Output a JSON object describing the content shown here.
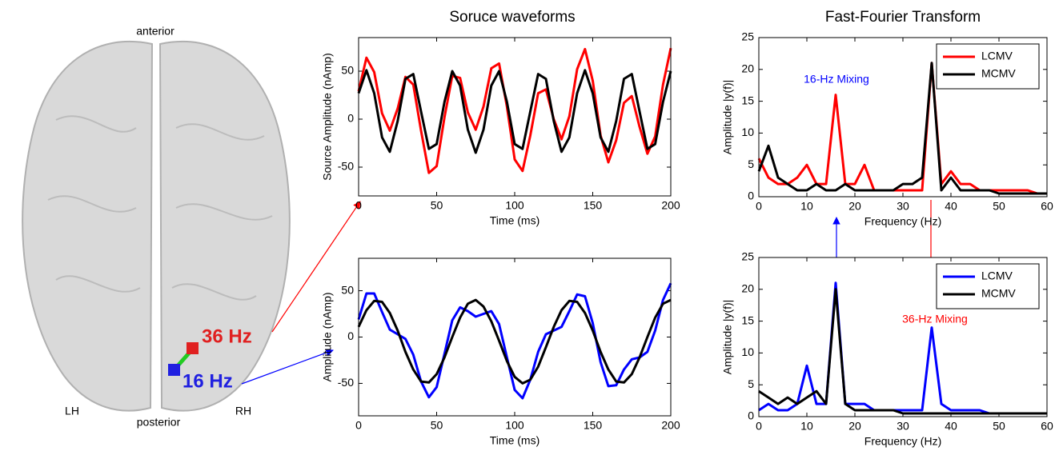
{
  "figure": {
    "titles": [
      "Soruce waveforms",
      "Fast-Fourier Transform"
    ],
    "brain": {
      "anterior": "anterior",
      "posterior": "posterior",
      "left": "LH",
      "right": "RH",
      "source_a": "36 Hz",
      "source_b": "16 Hz"
    }
  },
  "chart_data": [
    {
      "type": "line",
      "xlabel": "Time (ms)",
      "ylabel": "Source Amplitude (nAmp)",
      "x": [
        0,
        5,
        10,
        15,
        20,
        25,
        30,
        35,
        40,
        45,
        50,
        55,
        60,
        65,
        70,
        75,
        80,
        85,
        90,
        95,
        100,
        105,
        110,
        115,
        120,
        125,
        130,
        135,
        140,
        145,
        150,
        155,
        160,
        165,
        170,
        175,
        180,
        185,
        190,
        195,
        200
      ],
      "series": [
        {
          "color": "#ff0000",
          "values": [
            29,
            64,
            49,
            6,
            -12,
            11,
            44,
            36,
            -12,
            -56,
            -49,
            2,
            45,
            43,
            7,
            -11,
            13,
            53,
            58,
            13,
            -42,
            -54,
            -17,
            27,
            31,
            0,
            -21,
            3,
            52,
            73,
            40,
            -17,
            -45,
            -22,
            17,
            24,
            -8,
            -36,
            -18,
            36,
            74
          ]
        },
        {
          "color": "#000000",
          "values": [
            27,
            51,
            27,
            -19,
            -34,
            -2,
            42,
            47,
            8,
            -31,
            -26,
            18,
            50,
            35,
            -11,
            -35,
            -11,
            35,
            50,
            18,
            -26,
            -31,
            8,
            47,
            42,
            -2,
            -34,
            -19,
            27,
            51,
            27,
            -19,
            -34,
            -2,
            42,
            47,
            8,
            -31,
            -26,
            18,
            50
          ]
        }
      ],
      "xlim": [
        0,
        200
      ],
      "ylim": [
        -80,
        85
      ],
      "xticks": [
        0,
        50,
        100,
        150,
        200
      ],
      "yticks": [
        -50,
        0,
        50
      ]
    },
    {
      "type": "line",
      "xlabel": "Time (ms)",
      "ylabel": "Amplitude (nAmp)",
      "x": [
        0,
        5,
        10,
        15,
        20,
        25,
        30,
        35,
        40,
        45,
        50,
        55,
        60,
        65,
        70,
        75,
        80,
        85,
        90,
        95,
        100,
        105,
        110,
        115,
        120,
        125,
        130,
        135,
        140,
        145,
        150,
        155,
        160,
        165,
        170,
        175,
        180,
        185,
        190,
        195,
        200
      ],
      "series": [
        {
          "color": "#0000ff",
          "values": [
            19,
            47,
            47,
            27,
            8,
            3,
            -2,
            -19,
            -48,
            -65,
            -54,
            -18,
            18,
            32,
            28,
            22,
            25,
            28,
            14,
            -22,
            -57,
            -66,
            -46,
            -16,
            3,
            7,
            11,
            28,
            46,
            44,
            15,
            -27,
            -53,
            -52,
            -35,
            -24,
            -22,
            -16,
            7,
            40,
            58
          ]
        },
        {
          "color": "#000000",
          "values": [
            11,
            29,
            39,
            38,
            26,
            7,
            -16,
            -35,
            -48,
            -49,
            -40,
            -22,
            0,
            21,
            36,
            40,
            33,
            17,
            -4,
            -26,
            -43,
            -50,
            -46,
            -32,
            -11,
            11,
            29,
            39,
            38,
            26,
            7,
            -16,
            -35,
            -48,
            -49,
            -40,
            -22,
            0,
            21,
            36,
            40
          ]
        }
      ],
      "xlim": [
        0,
        200
      ],
      "ylim": [
        -85,
        85
      ],
      "xticks": [
        0,
        50,
        100,
        150,
        200
      ],
      "yticks": [
        -50,
        0,
        50
      ]
    },
    {
      "type": "line",
      "xlabel": "Frequency (Hz)",
      "ylabel": "Amplitude |y(f)|",
      "x": [
        0,
        2,
        4,
        6,
        8,
        10,
        12,
        14,
        16,
        18,
        20,
        22,
        24,
        26,
        28,
        30,
        32,
        34,
        36,
        38,
        40,
        42,
        44,
        46,
        48,
        50,
        52,
        54,
        56,
        58,
        60
      ],
      "series": [
        {
          "name": "LCMV",
          "color": "#ff0000",
          "values": [
            6,
            3,
            2,
            2,
            3,
            5,
            2,
            2,
            16,
            2,
            2,
            5,
            1,
            1,
            1,
            1,
            1,
            1,
            21,
            2,
            4,
            2,
            2,
            1,
            1,
            1,
            1,
            1,
            1,
            0.5,
            0.5
          ]
        },
        {
          "name": "MCMV",
          "color": "#000000",
          "values": [
            4,
            8,
            3,
            2,
            1,
            1,
            2,
            1,
            1,
            2,
            1,
            1,
            1,
            1,
            1,
            2,
            2,
            3,
            21,
            1,
            3,
            1,
            1,
            1,
            1,
            0.5,
            0.5,
            0.5,
            0.5,
            0.5,
            0.5
          ]
        }
      ],
      "xlim": [
        0,
        60
      ],
      "ylim": [
        0,
        25
      ],
      "xticks": [
        0,
        10,
        20,
        30,
        40,
        50,
        60
      ],
      "yticks": [
        0,
        5,
        10,
        15,
        20,
        25
      ],
      "legend": "upper right",
      "annotation": {
        "text": "16-Hz Mixing",
        "color": "#0000ff"
      }
    },
    {
      "type": "line",
      "xlabel": "Frequency (Hz)",
      "ylabel": "Amplitude |y(f)|",
      "x": [
        0,
        2,
        4,
        6,
        8,
        10,
        12,
        14,
        16,
        18,
        20,
        22,
        24,
        26,
        28,
        30,
        32,
        34,
        36,
        38,
        40,
        42,
        44,
        46,
        48,
        50,
        52,
        54,
        56,
        58,
        60
      ],
      "series": [
        {
          "name": "LCMV",
          "color": "#0000ff",
          "values": [
            1,
            2,
            1,
            1,
            2,
            8,
            2,
            2,
            21,
            2,
            2,
            2,
            1,
            1,
            1,
            1,
            1,
            1,
            14,
            2,
            1,
            1,
            1,
            1,
            0.5,
            0.5,
            0.5,
            0.5,
            0.5,
            0.5,
            0.5
          ]
        },
        {
          "name": "MCMV",
          "color": "#000000",
          "values": [
            4,
            3,
            2,
            3,
            2,
            3,
            4,
            2,
            20,
            2,
            1,
            1,
            1,
            1,
            1,
            0.5,
            0.5,
            0.5,
            0.5,
            0.5,
            0.5,
            0.5,
            0.5,
            0.5,
            0.5,
            0.5,
            0.5,
            0.5,
            0.5,
            0.5,
            0.5
          ]
        }
      ],
      "xlim": [
        0,
        60
      ],
      "ylim": [
        0,
        25
      ],
      "xticks": [
        0,
        10,
        20,
        30,
        40,
        50,
        60
      ],
      "yticks": [
        0,
        5,
        10,
        15,
        20,
        25
      ],
      "legend": "upper right",
      "annotation": {
        "text": "36-Hz Mixing",
        "color": "#ff0000"
      }
    }
  ]
}
